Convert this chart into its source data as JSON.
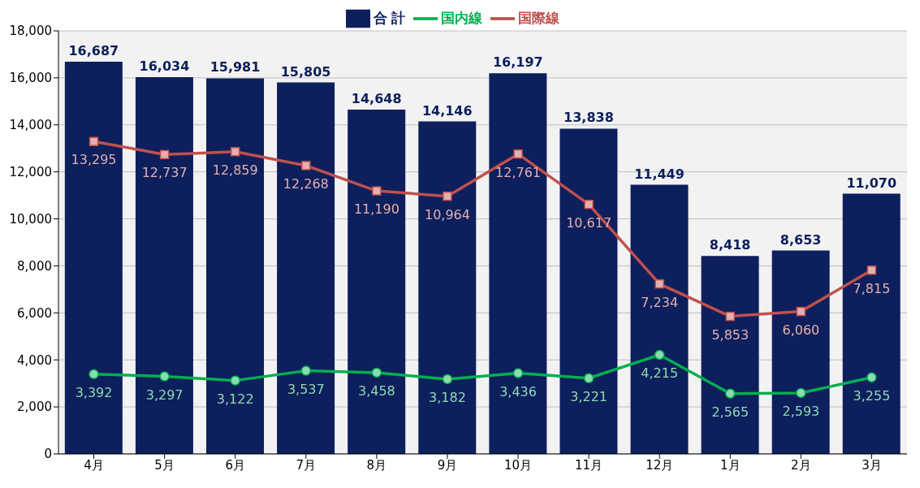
{
  "chart_data": {
    "type": "bar",
    "categories": [
      "4月",
      "5月",
      "6月",
      "7月",
      "8月",
      "9月",
      "10月",
      "11月",
      "12月",
      "1月",
      "2月",
      "3月"
    ],
    "series": [
      {
        "name": "合 計",
        "color": "#0d1f5c",
        "values": [
          16687,
          16034,
          15981,
          15805,
          14648,
          14146,
          16197,
          13838,
          11449,
          8418,
          8653,
          11070
        ],
        "value_labels": [
          "16,687",
          "16,034",
          "15,981",
          "15,805",
          "14,648",
          "14,146",
          "16,197",
          "13,838",
          "11,449",
          "8,418",
          "8,653",
          "11,070"
        ]
      },
      {
        "name": "国内線",
        "type": "line",
        "color": "#00b050",
        "marker": "circle",
        "values": [
          3392,
          3297,
          3122,
          3537,
          3458,
          3182,
          3436,
          3221,
          4215,
          2565,
          2593,
          3255
        ],
        "value_labels": [
          "3,392",
          "3,297",
          "3,122",
          "3,537",
          "3,458",
          "3,182",
          "3,436",
          "3,221",
          "4,215",
          "2,565",
          "2,593",
          "3,255"
        ]
      },
      {
        "name": "国際線",
        "type": "line",
        "color": "#c0504d",
        "marker": "square",
        "values": [
          13295,
          12737,
          12859,
          12268,
          11190,
          10964,
          12761,
          10617,
          7234,
          5853,
          6060,
          7815
        ],
        "value_labels": [
          "13,295",
          "12,737",
          "12,859",
          "12,268",
          "11,190",
          "10,964",
          "12,761",
          "10,617",
          "7,234",
          "5,853",
          "6,060",
          "7,815"
        ]
      }
    ],
    "ylim": [
      0,
      18000
    ],
    "yticks": [
      0,
      {
        "value": 2000,
        "label": "2,000"
      },
      {
        "value": 4000,
        "label": "4,000"
      },
      {
        "value": 6000,
        "label": "6,000"
      },
      {
        "value": 8000,
        "label": "8,000"
      },
      {
        "value": 10000,
        "label": "10,000"
      },
      {
        "value": 12000,
        "label": "12,000"
      },
      {
        "value": 14000,
        "label": "14,000"
      },
      {
        "value": 16000,
        "label": "16,000"
      },
      {
        "value": 18000,
        "label": "18,000"
      }
    ],
    "grid": "y",
    "legend": "top"
  }
}
